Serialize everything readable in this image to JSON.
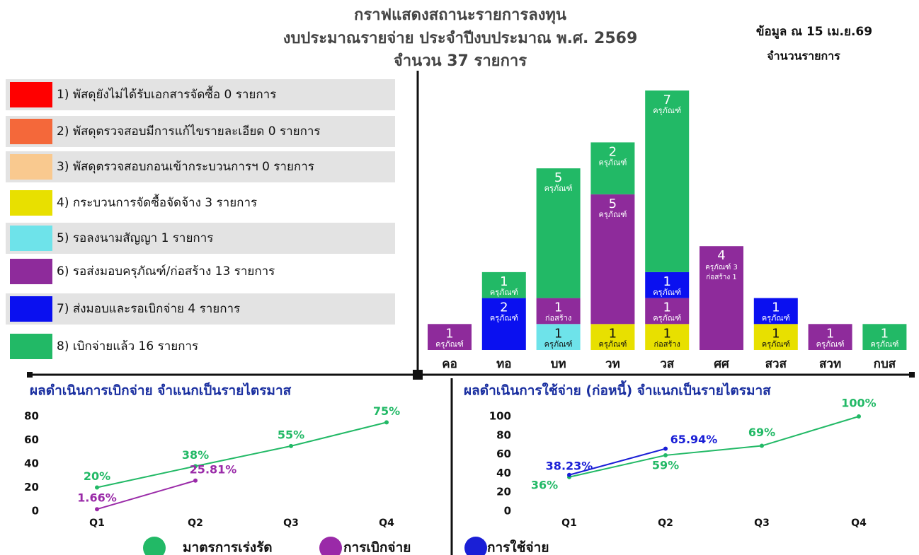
{
  "chart_data": [
    {
      "type": "bar",
      "title": [
        "กราฟแสดงสถานะรายการลงทุน",
        "งบประมาณรายจ่าย ประจำปีงบประมาณ พ.ศ. 2569",
        "จำนวน 37 รายการ"
      ],
      "annotations": [
        "ข้อมูล ณ 15 เม.ย.69",
        "จำนวนรายการ"
      ],
      "categories": [
        "คอ",
        "ทอ",
        "บท",
        "วท",
        "วส",
        "ศศ",
        "สวส",
        "สวท",
        "กบส"
      ],
      "series": [
        {
          "name": "1) พัสดุยังไม่ได้รับเอกสารจัดซื้อ 0 รายการ",
          "color": "#ff0000",
          "values": [
            null,
            null,
            null,
            null,
            null,
            null,
            null,
            null,
            null
          ]
        },
        {
          "name": "2) พัสดุตรวจสอบมีการแก้ไขรายละเอียด 0 รายการ",
          "color": "#f4683a",
          "values": [
            null,
            null,
            null,
            null,
            null,
            null,
            null,
            null,
            null
          ]
        },
        {
          "name": "3) พัสดุตรวจสอบกอนเข้ากระบวนการฯ 0 รายการ",
          "color": "#f9c98f",
          "values": [
            null,
            null,
            null,
            null,
            null,
            null,
            null,
            null,
            null
          ]
        },
        {
          "name": "4) กระบวนการจัดซื้อจัดจ้าง 3 รายการ",
          "color": "#e8e000",
          "values": [
            null,
            null,
            null,
            1,
            1,
            null,
            1,
            null,
            null
          ],
          "notes": [
            null,
            null,
            null,
            "ครุภัณฑ์",
            "ก่อสร้าง",
            null,
            "ครุภัณฑ์",
            null,
            null
          ]
        },
        {
          "name": "5) รอลงนามสัญญา 1 รายการ",
          "color": "#6ee3ea",
          "values": [
            null,
            null,
            1,
            null,
            null,
            null,
            null,
            null,
            null
          ],
          "notes": [
            null,
            null,
            "ครุภัณฑ์",
            null,
            null,
            null,
            null,
            null,
            null
          ]
        },
        {
          "name": "6) รอส่งมอบครุภัณฑ์/ก่อสร้าง 13 รายการ",
          "color": "#8e2b9b",
          "values": [
            1,
            null,
            1,
            5,
            1,
            4,
            null,
            1,
            null
          ],
          "notes": [
            "ครุภัณฑ์",
            null,
            "ก่อสร้าง",
            "ครุภัณฑ์",
            "ครุภัณฑ์",
            [
              "ครุภัณฑ์ 3",
              "ก่อสร้าง 1"
            ],
            null,
            "ครุภัณฑ์",
            null
          ]
        },
        {
          "name": "7) ส่งมอบและรอเบิกจ่าย 4 รายการ",
          "color": "#0a10f0",
          "values": [
            null,
            2,
            null,
            null,
            1,
            null,
            1,
            null,
            null
          ],
          "notes": [
            null,
            "ครุภัณฑ์",
            null,
            null,
            "ครุภัณฑ์",
            null,
            "ครุภัณฑ์",
            null,
            null
          ]
        },
        {
          "name": "8) เบิกจ่ายแล้ว 16 รายการ",
          "color": "#22b966",
          "values": [
            null,
            1,
            5,
            2,
            7,
            null,
            null,
            null,
            1
          ],
          "notes": [
            null,
            "ครุภัณฑ์",
            "ครุภัณฑ์",
            "ครุภัณฑ์",
            "ครุภัณฑ์",
            null,
            null,
            null,
            "ครุภัณฑ์"
          ]
        }
      ]
    },
    {
      "type": "line",
      "title": "ผลดำเนินการเบิกจ่าย จำแนกเป็นรายไตรมาส",
      "categories": [
        "Q1",
        "Q2",
        "Q3",
        "Q4"
      ],
      "ylim": [
        0,
        80
      ],
      "yticks": [
        0,
        20,
        40,
        60,
        80
      ],
      "series": [
        {
          "name": "มาตรการเร่งรัด",
          "color": "#22b966",
          "values": [
            20,
            38,
            55,
            75
          ],
          "value_labels": [
            "20%",
            "38%",
            "55%",
            "75%"
          ]
        },
        {
          "name": "การเบิกจ่าย",
          "color": "#9a2aa8",
          "values": [
            1.66,
            25.81,
            null,
            null
          ],
          "value_labels": [
            "1.66%",
            "25.81%",
            null,
            null
          ]
        }
      ]
    },
    {
      "type": "line",
      "title": "ผลดำเนินการใช้จ่าย (ก่อหนี้) จำแนกเป็นรายไตรมาส",
      "categories": [
        "Q1",
        "Q2",
        "Q3",
        "Q4"
      ],
      "ylim": [
        0,
        100
      ],
      "yticks": [
        0,
        20,
        40,
        60,
        80,
        100
      ],
      "series": [
        {
          "color": "#22b966",
          "values": [
            36,
            59,
            69,
            100
          ],
          "value_labels": [
            "36%",
            "59%",
            "69%",
            "100%"
          ]
        },
        {
          "name": "การใช้จ่าย",
          "color": "#1a1fd6",
          "values": [
            38.23,
            65.94,
            null,
            null
          ],
          "value_labels": [
            "38.23%",
            "65.94%",
            null,
            null
          ]
        }
      ]
    }
  ]
}
